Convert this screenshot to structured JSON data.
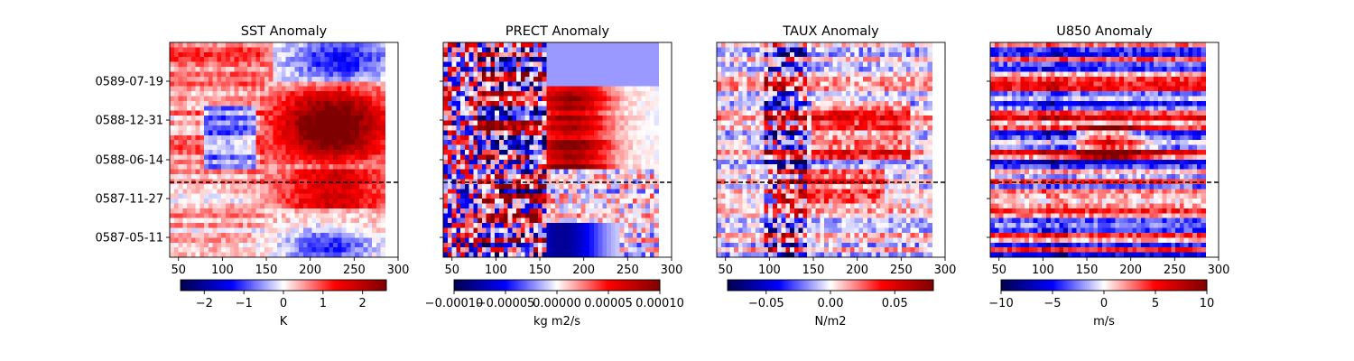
{
  "chart_data": [
    {
      "type": "heatmap",
      "title": "SST Anomaly",
      "xlim": [
        40,
        285
      ],
      "xticks": [
        "50",
        "100",
        "150",
        "200",
        "250",
        "300"
      ],
      "yticks": [
        "0589-07-19",
        "0588-12-31",
        "0588-06-14",
        "0587-11-27",
        "0587-05-11"
      ],
      "show_yticklabels": true,
      "colorbar": {
        "label": "K",
        "range": [
          -2.6,
          2.6
        ],
        "ticks": [
          "−2",
          "−1",
          "0",
          "1",
          "2"
        ],
        "tick_values": [
          -2,
          -1,
          0,
          1,
          2
        ]
      },
      "field": "sst"
    },
    {
      "type": "heatmap",
      "title": "PRECT Anomaly",
      "xlim": [
        40,
        285
      ],
      "xticks": [
        "50",
        "100",
        "150",
        "200",
        "250",
        "300"
      ],
      "yticks": [
        "0589-07-19",
        "0588-12-31",
        "0588-06-14",
        "0587-11-27",
        "0587-05-11"
      ],
      "show_yticklabels": false,
      "colorbar": {
        "label": "kg m2/s",
        "range": [
          -0.0001,
          0.0001
        ],
        "ticks": [
          "−0.00010",
          "−0.00005",
          "0.00000",
          "0.00005",
          "0.00010"
        ],
        "tick_values": [
          -0.0001,
          -5e-05,
          0,
          5e-05,
          0.0001
        ]
      },
      "field": "prect"
    },
    {
      "type": "heatmap",
      "title": "TAUX Anomaly",
      "xlim": [
        40,
        285
      ],
      "xticks": [
        "50",
        "100",
        "150",
        "200",
        "250",
        "300"
      ],
      "yticks": [
        "0589-07-19",
        "0588-12-31",
        "0588-06-14",
        "0587-11-27",
        "0587-05-11"
      ],
      "show_yticklabels": false,
      "colorbar": {
        "label": "N/m2",
        "range": [
          -0.08,
          0.08
        ],
        "ticks": [
          "−0.05",
          "0.00",
          "0.05"
        ],
        "tick_values": [
          -0.05,
          0,
          0.05
        ]
      },
      "field": "taux"
    },
    {
      "type": "heatmap",
      "title": "U850 Anomaly",
      "xlim": [
        40,
        285
      ],
      "xticks": [
        "50",
        "100",
        "150",
        "200",
        "250",
        "300"
      ],
      "yticks": [
        "0589-07-19",
        "0588-12-31",
        "0588-06-14",
        "0587-11-27",
        "0587-05-11"
      ],
      "show_yticklabels": false,
      "colorbar": {
        "label": "m/s",
        "range": [
          -10,
          10
        ],
        "ticks": [
          "−10",
          "−5",
          "0",
          "5",
          "10"
        ],
        "tick_values": [
          -10,
          -5,
          0,
          5,
          10
        ]
      },
      "field": "u850"
    }
  ],
  "reference_line": {
    "date": "0587-12-15",
    "style": "dashed",
    "color": "#000000"
  },
  "colormap": "seismic"
}
